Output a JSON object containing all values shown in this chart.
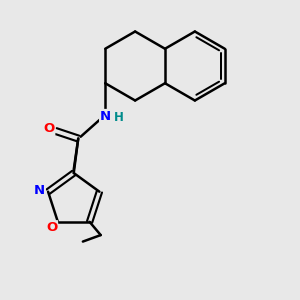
{
  "background_color": "#e8e8e8",
  "bond_color": "#000000",
  "atom_colors": {
    "O": "#ff0000",
    "N": "#0000ff",
    "H": "#008b8b",
    "C": "#000000"
  },
  "figsize": [
    3.0,
    3.0
  ],
  "dpi": 100,
  "xlim": [
    0,
    10
  ],
  "ylim": [
    0,
    10
  ]
}
